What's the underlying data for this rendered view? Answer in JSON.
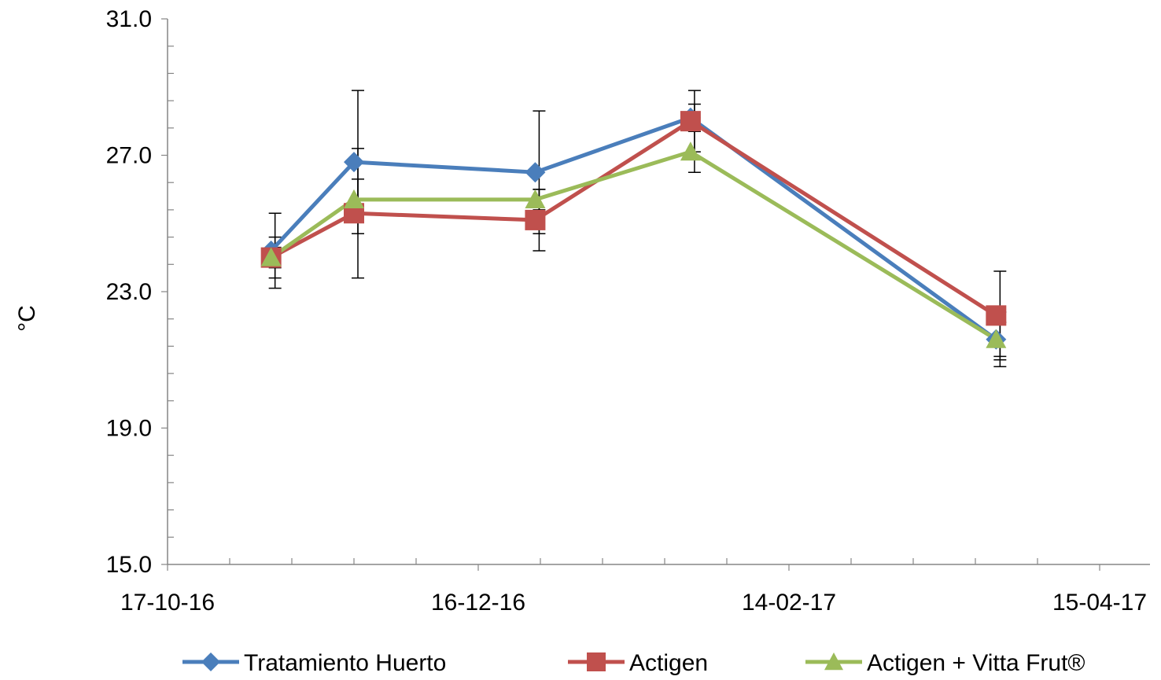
{
  "chart_data": {
    "type": "line",
    "ylabel": "°C",
    "xlabel": "",
    "ylim": [
      15.0,
      31.0
    ],
    "yticks": [
      "31.0",
      "27.0",
      "23.0",
      "19.0",
      "15.0"
    ],
    "ytick_values": [
      31.0,
      27.0,
      23.0,
      19.0,
      15.0
    ],
    "xlim": [
      "2016-10-17",
      "2017-04-15"
    ],
    "xticks": [
      "17-10-16",
      "16-12-16",
      "14-02-17",
      "15-04-17"
    ],
    "xtick_dates": [
      "2016-10-17",
      "2016-12-16",
      "2017-02-14",
      "2017-04-15"
    ],
    "grid": false,
    "legend_position": "bottom",
    "series": [
      {
        "name": "Tratamiento Huerto",
        "color": "#4a7ebb",
        "marker": "diamond",
        "points": [
          {
            "x": "2016-11-06",
            "y": 24.2,
            "err": 1.1
          },
          {
            "x": "2016-11-22",
            "y": 26.8,
            "err": 2.1
          },
          {
            "x": "2016-12-27",
            "y": 26.5,
            "err": 1.8
          },
          {
            "x": "2017-01-26",
            "y": 28.1,
            "err": 0.4
          },
          {
            "x": "2017-03-26",
            "y": 21.6,
            "err": 0.5
          }
        ]
      },
      {
        "name": "Actigen",
        "color": "#c0504d",
        "marker": "square",
        "points": [
          {
            "x": "2016-11-06",
            "y": 24.0,
            "err": 0.3
          },
          {
            "x": "2016-11-22",
            "y": 25.3,
            "err": 1.9
          },
          {
            "x": "2016-12-27",
            "y": 25.1,
            "err": 0.9
          },
          {
            "x": "2017-01-26",
            "y": 28.0,
            "err": 0.9
          },
          {
            "x": "2017-03-26",
            "y": 22.3,
            "err": 1.3
          }
        ]
      },
      {
        "name": "Actigen + Vitta Frut®",
        "color": "#9bbb59",
        "marker": "triangle",
        "points": [
          {
            "x": "2016-11-06",
            "y": 24.0,
            "err": 0.6
          },
          {
            "x": "2016-11-22",
            "y": 25.7,
            "err": 0.6
          },
          {
            "x": "2016-12-27",
            "y": 25.7,
            "err": 0.3
          },
          {
            "x": "2017-01-26",
            "y": 27.1,
            "err": 0.6
          },
          {
            "x": "2017-03-26",
            "y": 21.6,
            "err": 0.8
          }
        ]
      }
    ]
  }
}
